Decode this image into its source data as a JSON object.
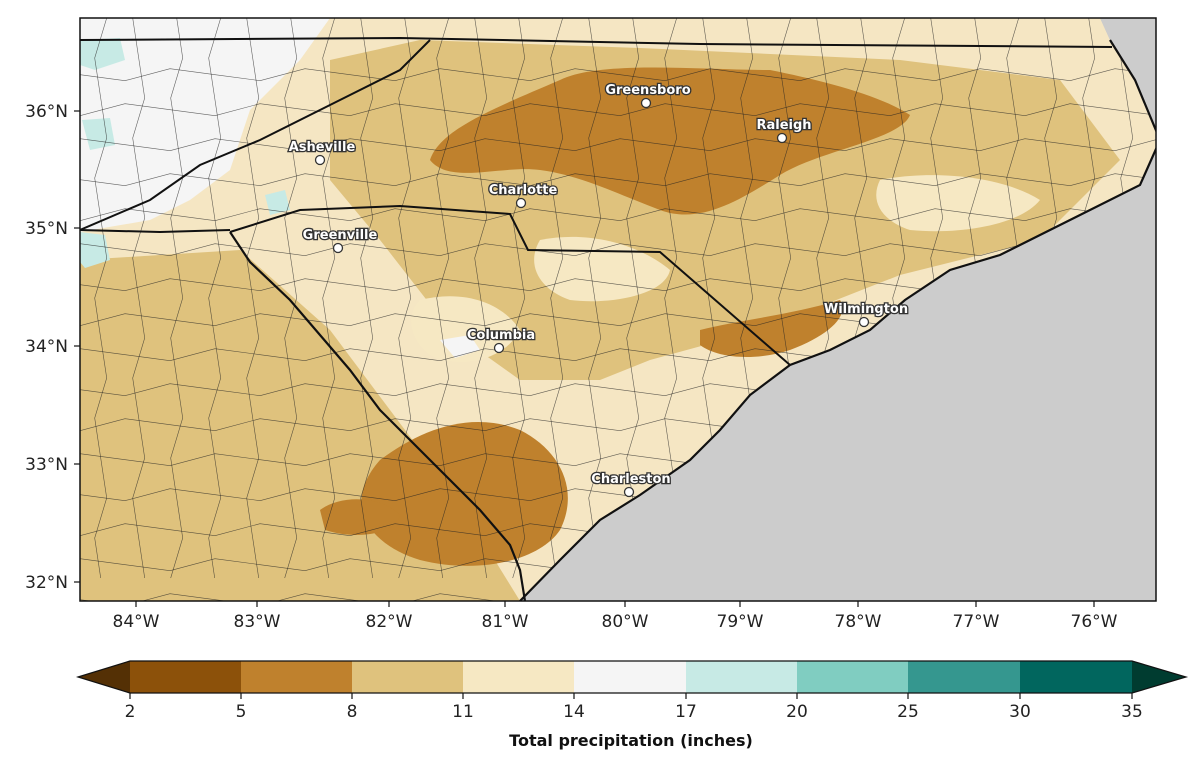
{
  "map": {
    "longitude_ticks": [
      "84°W",
      "83°W",
      "82°W",
      "81°W",
      "80°W",
      "79°W",
      "78°W",
      "77°W",
      "76°W"
    ],
    "latitude_ticks": [
      "36°N",
      "35°N",
      "34°N",
      "33°N",
      "32°N"
    ],
    "cities": [
      {
        "name": "Greensboro"
      },
      {
        "name": "Raleigh"
      },
      {
        "name": "Asheville"
      },
      {
        "name": "Charlotte"
      },
      {
        "name": "Greenville"
      },
      {
        "name": "Columbia"
      },
      {
        "name": "Wilmington"
      },
      {
        "name": "Charleston"
      }
    ],
    "ocean_color": "#cccccc",
    "land_base_color": "#f5e6c3"
  },
  "colorbar": {
    "title": "Total precipitation (inches)",
    "tick_labels": [
      "2",
      "5",
      "8",
      "11",
      "14",
      "17",
      "20",
      "25",
      "30",
      "35"
    ],
    "under_color": "#543005",
    "over_color": "#003c30",
    "bin_colors": [
      "#8c510a",
      "#bf812d",
      "#dfc27d",
      "#f6e8c3",
      "#f5f5f5",
      "#c7eae5",
      "#80cdc1",
      "#35978f",
      "#01665e"
    ]
  }
}
